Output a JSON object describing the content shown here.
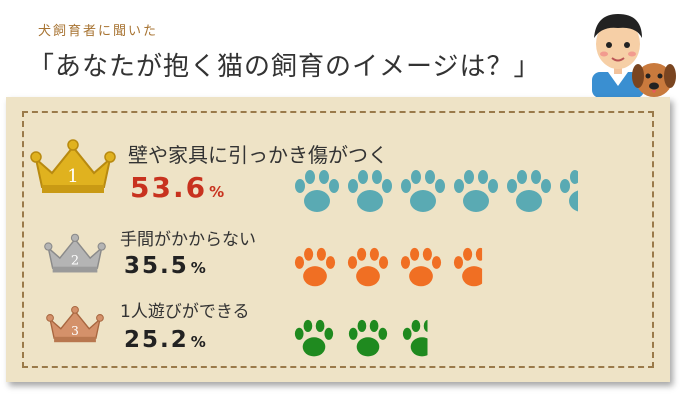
{
  "header": {
    "subtitle": "犬飼育者に聞いた",
    "title": "「あなたが抱く猫の飼育のイメージは？」"
  },
  "colors": {
    "board": "#eee3c6",
    "gold": "#e0b21f",
    "silver": "#b4b4b4",
    "bronze": "#d4916a",
    "teal": "#5aaab3",
    "orange": "#f06f23",
    "green": "#1f8a1f"
  },
  "chart_data": {
    "type": "bar",
    "unit": "%",
    "categories": [
      "壁や家具に引っかき傷がつく",
      "手間がかからない",
      "1人遊びができる"
    ],
    "values": [
      53.6,
      35.5,
      25.2
    ],
    "ranks": [
      "1",
      "2",
      "3"
    ],
    "value_labels": [
      "53.6",
      "35.5",
      "25.2"
    ]
  }
}
